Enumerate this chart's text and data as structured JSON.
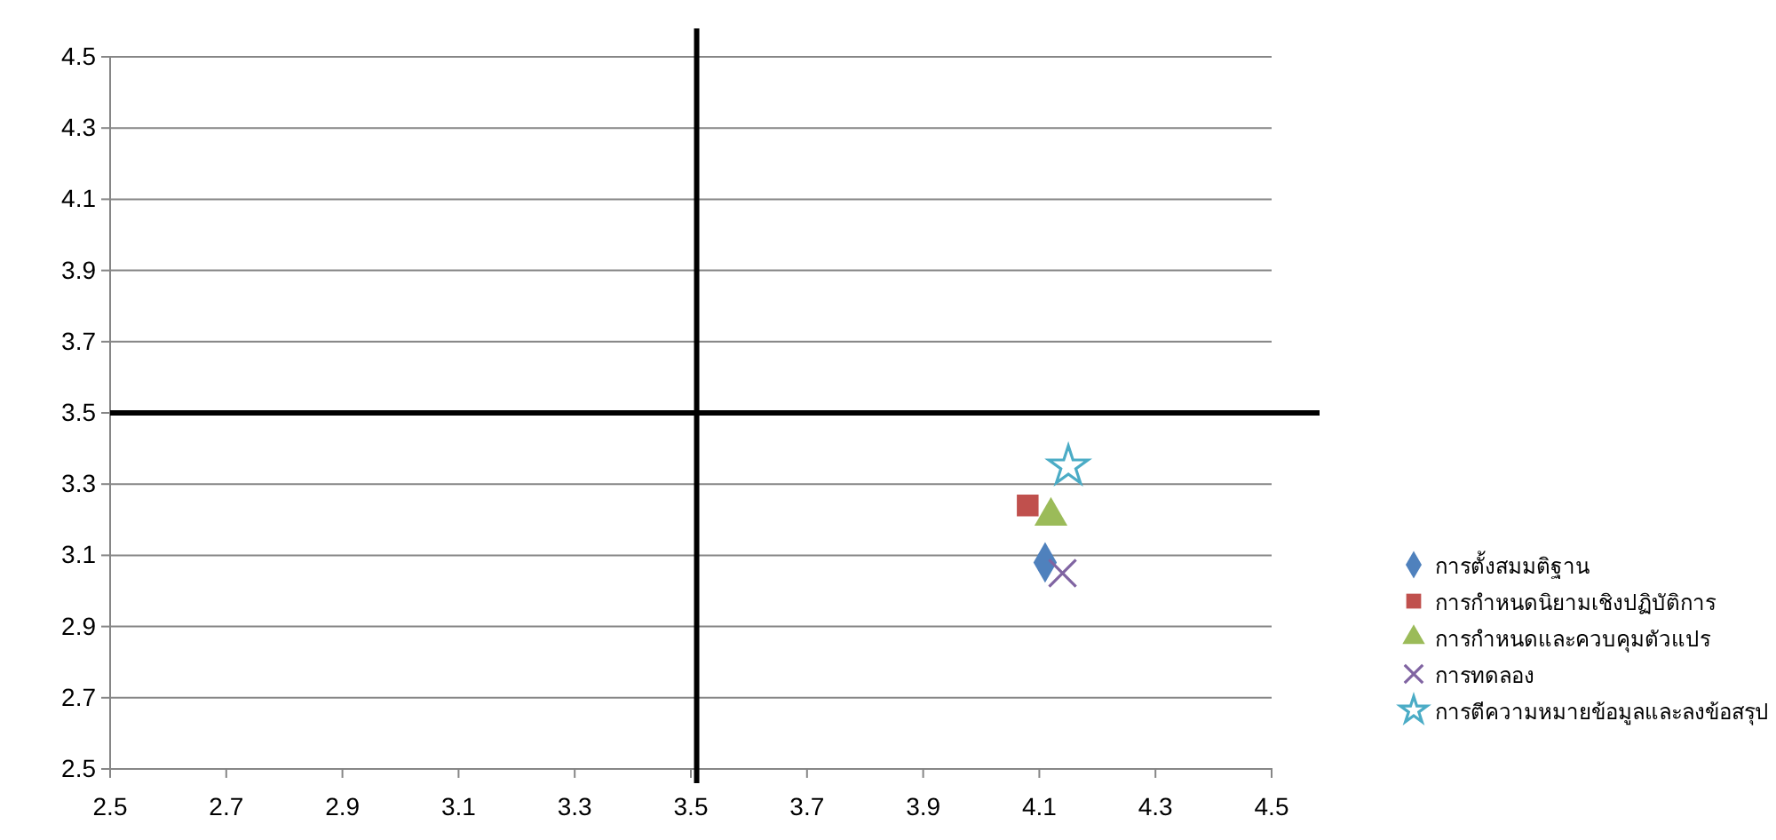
{
  "chart_data": {
    "type": "scatter",
    "xlim": [
      2.5,
      4.5
    ],
    "ylim": [
      2.5,
      4.5
    ],
    "xticks": [
      2.5,
      2.7,
      2.9,
      3.1,
      3.3,
      3.5,
      3.7,
      3.9,
      4.1,
      4.3,
      4.5
    ],
    "yticks": [
      2.5,
      2.7,
      2.9,
      3.1,
      3.3,
      3.5,
      3.7,
      3.9,
      4.1,
      4.3,
      4.5
    ],
    "grid": "y",
    "legend": "right",
    "series": [
      {
        "name": "การตั้งสมมติฐาน",
        "color": "#4f81bd",
        "marker": "diamond",
        "x": [
          4.11
        ],
        "values": [
          3.08
        ]
      },
      {
        "name": "การกำหนดนิยามเชิงปฏิบัติการ",
        "color": "#c0504d",
        "marker": "square",
        "x": [
          4.08
        ],
        "values": [
          3.24
        ]
      },
      {
        "name": "การกำหนดและควบคุมตัวแปร",
        "color": "#9bbb59",
        "marker": "triangle",
        "x": [
          4.12
        ],
        "values": [
          3.21
        ]
      },
      {
        "name": "การทดลอง",
        "color": "#8064a2",
        "marker": "cross",
        "x": [
          4.14
        ],
        "values": [
          3.05
        ]
      },
      {
        "name": "การตีความหมายข้อมูลและลงข้อสรุป",
        "color": "#4bacc6",
        "marker": "star",
        "x": [
          4.15
        ],
        "values": [
          3.35
        ]
      }
    ],
    "ref_lines": [
      {
        "axis": "x",
        "value": 3.51,
        "color": "#000000"
      },
      {
        "axis": "y",
        "value": 3.5,
        "color": "#000000"
      }
    ]
  }
}
